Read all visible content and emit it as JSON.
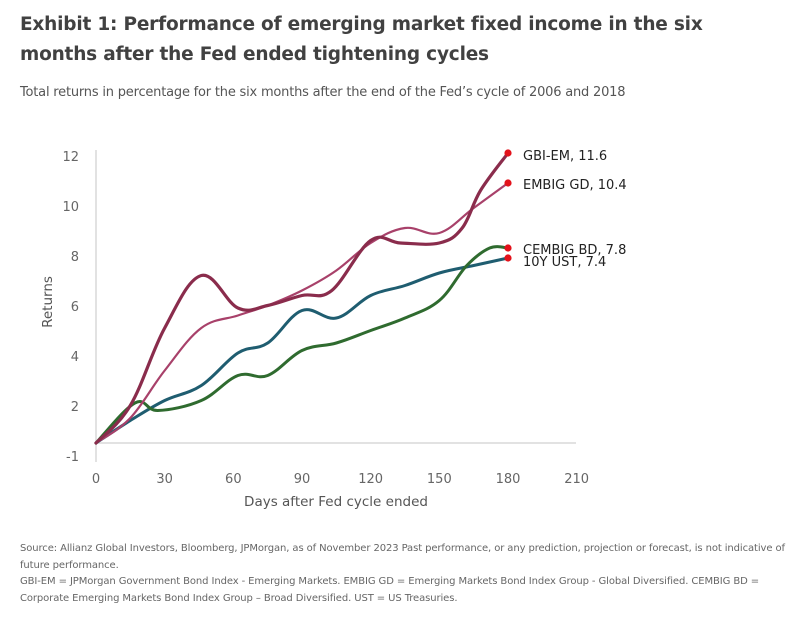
{
  "title": "Exhibit 1: Performance of emerging market fixed income in the six months after the Fed ended tightening cycles",
  "subtitle": "Total returns in percentage for the six months after the end of the Fed’s cycle of 2006 and 2018",
  "footer": {
    "source": "Source: Allianz Global Investors, Bloomberg, JPMorgan, as of November 2023 Past performance, or any prediction, projection or forecast, is not indicative of future performance.",
    "definitions": "GBI-EM = JPMorgan Government Bond Index - Emerging Markets. EMBIG GD = Emerging Markets Bond Index Group - Global Diversified. CEMBIG BD = Corporate Emerging Markets Bond Index Group – Broad Diversified. UST = US Treasuries."
  },
  "chart_data": {
    "type": "line",
    "title": "Exhibit 1: Performance of emerging market fixed income in the six months after the Fed ended tightening cycles",
    "subtitle": "Total returns in percentage for the six months after the end of the Fed’s cycle of 2006 and 2018",
    "xlabel": "Days after Fed cycle ended",
    "ylabel": "Returns",
    "x_ticks": [
      "0",
      "30",
      "60",
      "90",
      "120",
      "150",
      "180",
      "210"
    ],
    "y_ticks": [
      "-1",
      "2",
      "4",
      "6",
      "8",
      "10",
      "12"
    ],
    "xlim": [
      0,
      210
    ],
    "ylim": [
      -1,
      12
    ],
    "grid": false,
    "legend": "end-of-line labels (right)",
    "series": [
      {
        "name": "GBI-EM",
        "end_label": "GBI-EM, 11.6",
        "color": "#8a2c4c",
        "x": [
          0,
          15,
          30,
          46,
          62,
          75,
          90,
          103,
          120,
          133,
          150,
          160,
          168,
          180
        ],
        "values": [
          0,
          1.5,
          4.6,
          6.7,
          5.4,
          5.5,
          5.9,
          6.1,
          8.1,
          8.0,
          8.0,
          8.6,
          10.1,
          11.6
        ]
      },
      {
        "name": "EMBIG GD",
        "end_label": "EMBIG GD, 10.4",
        "color": "#a8416a",
        "x": [
          0,
          15,
          30,
          46,
          62,
          75,
          90,
          105,
          120,
          135,
          150,
          165,
          180
        ],
        "values": [
          0,
          1.0,
          2.9,
          4.6,
          5.1,
          5.5,
          6.1,
          6.9,
          8.0,
          8.6,
          8.4,
          9.4,
          10.4
        ]
      },
      {
        "name": "CEMBIG BD",
        "end_label": "CEMBIG BD, 7.8",
        "color": "#2f6b2f",
        "x": [
          0,
          17,
          27,
          46,
          62,
          75,
          90,
          105,
          120,
          135,
          150,
          162,
          172,
          180
        ],
        "values": [
          0,
          1.6,
          1.3,
          1.7,
          2.7,
          2.7,
          3.7,
          4.0,
          4.5,
          5.0,
          5.7,
          7.1,
          7.8,
          7.8
        ]
      },
      {
        "name": "10Y UST",
        "end_label": "10Y UST, 7.4",
        "color": "#1f5d70",
        "x": [
          0,
          15,
          30,
          46,
          62,
          75,
          90,
          105,
          120,
          135,
          150,
          165,
          180
        ],
        "values": [
          0,
          0.9,
          1.7,
          2.3,
          3.6,
          4.0,
          5.3,
          5.0,
          5.9,
          6.3,
          6.8,
          7.1,
          7.4
        ]
      }
    ],
    "end_marker_color": "#e3121b"
  }
}
